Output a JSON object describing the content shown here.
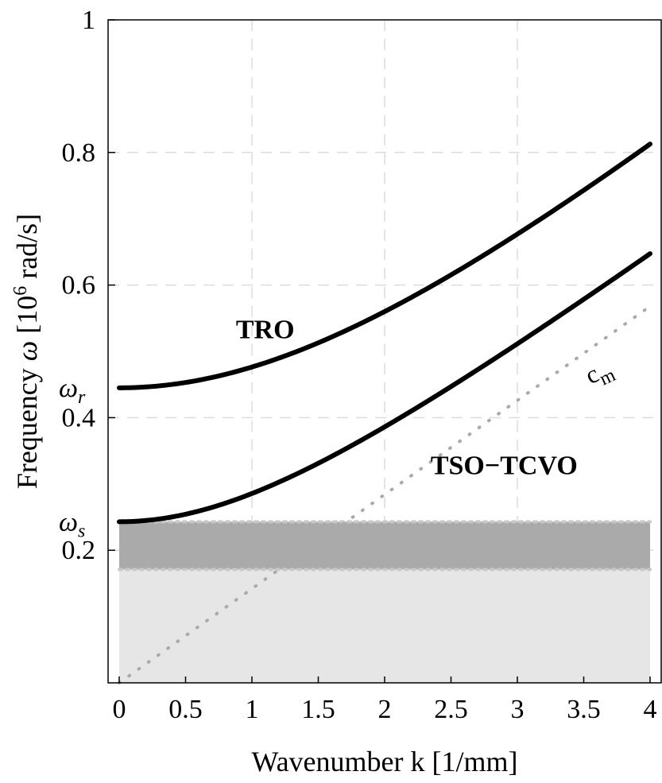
{
  "chart_data": {
    "type": "line",
    "xlabel": "Wavenumber k [1/mm]",
    "ylabel": {
      "prefix": "Frequency",
      "symbol": "ω",
      "unit_open": "[10",
      "unit_exp": "6",
      "unit_close": " rad/s]"
    },
    "xlim": [
      0,
      4
    ],
    "ylim": [
      0,
      1
    ],
    "x_ticks": [
      {
        "value": 0,
        "label": "0"
      },
      {
        "value": 0.5,
        "label": "0.5"
      },
      {
        "value": 1,
        "label": "1"
      },
      {
        "value": 1.5,
        "label": "1.5"
      },
      {
        "value": 2,
        "label": "2"
      },
      {
        "value": 2.5,
        "label": "2.5"
      },
      {
        "value": 3,
        "label": "3"
      },
      {
        "value": 3.5,
        "label": "3.5"
      },
      {
        "value": 4,
        "label": "4"
      }
    ],
    "y_ticks": [
      {
        "value": 0.2,
        "label": "0.2"
      },
      {
        "value": 0.4,
        "label": "0.4"
      },
      {
        "value": 0.6,
        "label": "0.6"
      },
      {
        "value": 0.8,
        "label": "0.8"
      },
      {
        "value": 1.0,
        "label": "1"
      }
    ],
    "grid": true,
    "series": [
      {
        "name": "TRO",
        "label": "TRO",
        "style": "solid",
        "color": "#000000",
        "omega0": 0.445,
        "speed": 0.17,
        "label_at": {
          "x": 1.1,
          "y": 0.52
        }
      },
      {
        "name": "TSO-TCVO",
        "label": "TSO−TCVO",
        "style": "solid",
        "color": "#000000",
        "omega0": 0.243,
        "speed": 0.15,
        "label_at": {
          "x": 2.9,
          "y": 0.315
        }
      },
      {
        "name": "c_m",
        "label_main": "c",
        "label_sub": "m",
        "style": "dotted",
        "color": "#aaaaaa",
        "slope": 0.142,
        "label_at": {
          "x": 3.55,
          "y": 0.45
        }
      }
    ],
    "bands": [
      {
        "name": "upper-band",
        "y_range": [
          0.171,
          0.243
        ],
        "color": "#aaaaaa"
      },
      {
        "name": "lower-band",
        "y_range": [
          0,
          0.171
        ],
        "color": "#e6e6e6"
      }
    ],
    "reference_lines": [
      {
        "name": "omega-s-line",
        "y": 0.243,
        "color": "#c8c8c8"
      },
      {
        "name": "band-boundary-line",
        "y": 0.171,
        "color": "#c8c8c8"
      }
    ],
    "annotations": [
      {
        "name": "omega-r",
        "symbol": "ω",
        "sub": "r",
        "y": 0.445
      },
      {
        "name": "omega-s",
        "symbol": "ω",
        "sub": "s",
        "y": 0.243
      }
    ]
  }
}
